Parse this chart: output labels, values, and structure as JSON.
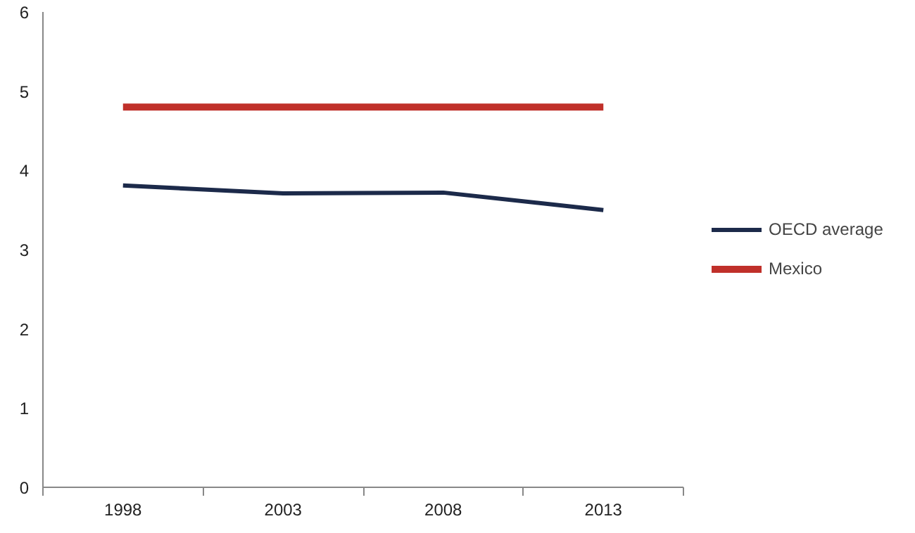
{
  "chart_data": {
    "type": "line",
    "categories": [
      "1998",
      "2003",
      "2008",
      "2013"
    ],
    "series": [
      {
        "name": "OECD average",
        "color": "#1c2a4a",
        "values": [
          3.81,
          3.71,
          3.72,
          3.5
        ]
      },
      {
        "name": "Mexico",
        "color": "#c0302a",
        "values": [
          4.8,
          4.8,
          4.8,
          4.8
        ]
      }
    ],
    "ylim": [
      0,
      6
    ],
    "yticks": [
      0,
      1,
      2,
      3,
      4,
      5,
      6
    ],
    "grid": false,
    "legend": "right",
    "marker": "none",
    "line_style": "solid"
  }
}
